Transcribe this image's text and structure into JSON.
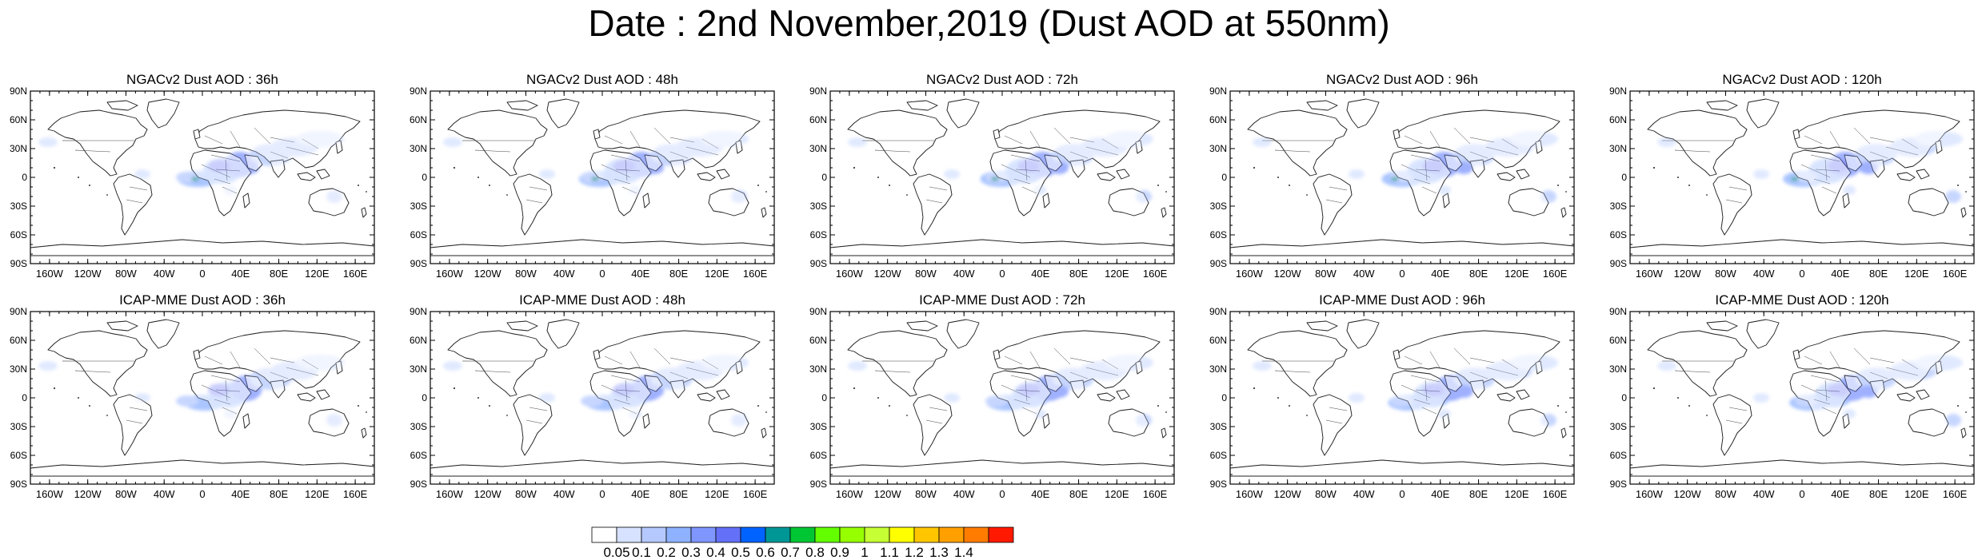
{
  "figure": {
    "title": "Date : 2nd November,2019 (Dust AOD at 550nm)"
  },
  "chart_data": {
    "type": "heatmap",
    "panels": [
      {
        "title": "NGACv2 Dust AOD : 36h",
        "model": "NGACv2",
        "lead_time": "36h"
      },
      {
        "title": "NGACv2 Dust AOD : 48h",
        "model": "NGACv2",
        "lead_time": "48h"
      },
      {
        "title": "NGACv2 Dust AOD : 72h",
        "model": "NGACv2",
        "lead_time": "72h"
      },
      {
        "title": "NGACv2 Dust AOD : 96h",
        "model": "NGACv2",
        "lead_time": "96h"
      },
      {
        "title": "NGACv2 Dust AOD : 120h",
        "model": "NGACv2",
        "lead_time": "120h"
      },
      {
        "title": "ICAP-MME Dust AOD : 36h",
        "model": "ICAP-MME",
        "lead_time": "36h"
      },
      {
        "title": "ICAP-MME Dust AOD : 48h",
        "model": "ICAP-MME",
        "lead_time": "48h"
      },
      {
        "title": "ICAP-MME Dust AOD : 72h",
        "model": "ICAP-MME",
        "lead_time": "72h"
      },
      {
        "title": "ICAP-MME Dust AOD : 96h",
        "model": "ICAP-MME",
        "lead_time": "96h"
      },
      {
        "title": "ICAP-MME Dust AOD : 120h",
        "model": "ICAP-MME",
        "lead_time": "120h"
      }
    ],
    "lat_range": [
      -90,
      90
    ],
    "lon_range": [
      -180,
      180
    ],
    "lat_ticks": [
      "90N",
      "60N",
      "30N",
      "0",
      "30S",
      "60S",
      "90S"
    ],
    "lon_ticks": [
      "160W",
      "120W",
      "80W",
      "40W",
      "0",
      "40E",
      "80E",
      "120E",
      "160E"
    ],
    "colorbar": {
      "levels": [
        "0.05",
        "0.1",
        "0.2",
        "0.3",
        "0.4",
        "0.5",
        "0.6",
        "0.7",
        "0.8",
        "0.9",
        "1",
        "1.1",
        "1.2",
        "1.3",
        "1.4"
      ],
      "colors": [
        "#ffffff",
        "#d6e2ff",
        "#b5c9ff",
        "#8eb2ff",
        "#7f96ff",
        "#6370f7",
        "#0063ff",
        "#009696",
        "#00c633",
        "#63ff00",
        "#96ff00",
        "#c6ff33",
        "#ffff00",
        "#ffc600",
        "#ffa000",
        "#ff7c00",
        "#ff1900"
      ]
    }
  }
}
